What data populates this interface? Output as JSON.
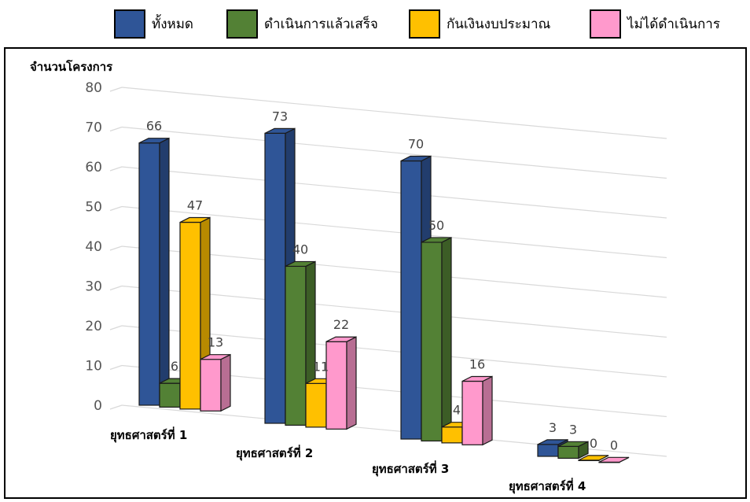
{
  "legend": [
    {
      "label": "ทั้งหมด",
      "color": "#2f5597"
    },
    {
      "label": "ดำเนินการแล้วเสร็จ",
      "color": "#538135"
    },
    {
      "label": "กันเงินงบประมาณ",
      "color": "#ffc000"
    },
    {
      "label": "ไม่ได้ดำเนินการ",
      "color": "#ff99cc"
    }
  ],
  "chart_data": {
    "type": "bar",
    "style": "3d-clustered-column",
    "ylabel": "จำนวนโครงการ",
    "ylim": [
      0,
      80
    ],
    "yticks": [
      "0",
      "10",
      "20",
      "30",
      "40",
      "50",
      "60",
      "70",
      "80"
    ],
    "grid": true,
    "legend_position": "top",
    "categories": [
      "ยุทธศาสตร์ที่ 1",
      "ยุทธศาสตร์ที่ 2",
      "ยุทธศาสตร์ที่ 3",
      "ยุทธศาสตร์ที่ 4"
    ],
    "series": [
      {
        "name": "ทั้งหมด",
        "color": "#2f5597",
        "values": [
          66,
          73,
          70,
          3
        ],
        "labels": [
          "66",
          "73",
          "70",
          "3"
        ]
      },
      {
        "name": "ดำเนินการแล้วเสร็จ",
        "color": "#538135",
        "values": [
          6,
          40,
          50,
          3
        ],
        "labels": [
          "6",
          "40",
          "50",
          "3"
        ]
      },
      {
        "name": "กันเงินงบประมาณ",
        "color": "#ffc000",
        "values": [
          47,
          11,
          4,
          0
        ],
        "labels": [
          "47",
          "11",
          "4",
          "0"
        ]
      },
      {
        "name": "ไม่ได้ดำเนินการ",
        "color": "#ff99cc",
        "values": [
          13,
          22,
          16,
          0
        ],
        "labels": [
          "13",
          "22",
          "16",
          "0"
        ]
      }
    ]
  }
}
